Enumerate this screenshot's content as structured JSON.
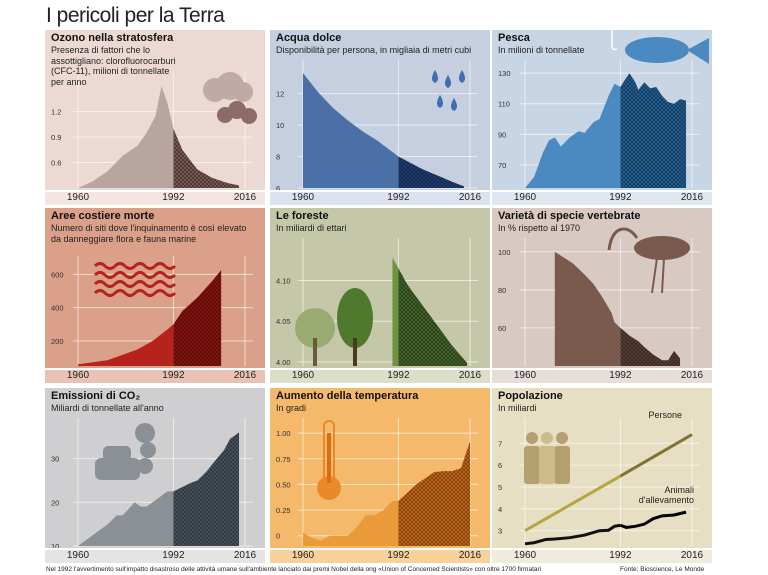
{
  "title": "I pericoli per la Terra",
  "footer": {
    "note": "Nel 1992 l'avvertimento sull'impatto disastroso delle attività umane sull'ambiente lanciato dai premi Nobel della ong «Union of Concerned Scientists» con oltre 1700 firmatari",
    "source": "Fonte: Bioscience, Le Monde"
  },
  "chart_data": [
    {
      "id": "ozono",
      "type": "area",
      "title": "Ozono nella stratosfera",
      "subtitle": "Presenza di fattori che lo assottigliano: clorofluorocarburi (CFC-11), milioni di tonnellate per anno",
      "x": [
        1960,
        1965,
        1970,
        1975,
        1980,
        1983,
        1986,
        1988,
        1990,
        1992,
        1995,
        2000,
        2005,
        2010,
        2014
      ],
      "y": [
        0.3,
        0.38,
        0.5,
        0.68,
        0.8,
        0.95,
        1.15,
        1.5,
        1.3,
        1.0,
        0.75,
        0.52,
        0.42,
        0.36,
        0.33
      ],
      "ylim": [
        0.3,
        1.55
      ],
      "yticks": [
        0.6,
        0.9,
        1.2
      ],
      "ytick_labels": [
        "0.6",
        "0.9",
        "1.2"
      ],
      "xticks": [
        "1960",
        "1992",
        "2016"
      ],
      "colors": {
        "bg": "#ecd9d3",
        "strip": "#f3e6e2",
        "fill": "#b9a5a0",
        "hatch": "#7a5a55"
      },
      "icon": "smoke-clouds-icon"
    },
    {
      "id": "acqua",
      "type": "area",
      "title": "Acqua dolce",
      "subtitle": "Disponibilità per persona, in migliaia di metri cubi",
      "x": [
        1960,
        1965,
        1970,
        1975,
        1980,
        1985,
        1992,
        1995,
        2000,
        2005,
        2010,
        2014
      ],
      "y": [
        13.3,
        12.1,
        11.1,
        10.3,
        9.6,
        9.0,
        8.0,
        7.7,
        7.2,
        6.8,
        6.4,
        6.1
      ],
      "ylim": [
        6,
        13.5
      ],
      "yticks": [
        6,
        8,
        10,
        12
      ],
      "ytick_labels": [
        "6",
        "8",
        "10",
        "12"
      ],
      "xticks": [
        "1960",
        "1992",
        "2016"
      ],
      "colors": {
        "bg": "#c6cfe0",
        "strip": "#dde3ee",
        "fill": "#4b70a6",
        "hatch": "#1f3f73"
      },
      "icon": "water-drops-icon"
    },
    {
      "id": "pesca",
      "type": "area",
      "title": "Pesca",
      "subtitle": "In milioni di tonnellate",
      "x": [
        1960,
        1963,
        1966,
        1968,
        1970,
        1972,
        1975,
        1978,
        1980,
        1983,
        1985,
        1988,
        1990,
        1992,
        1994,
        1995,
        1997,
        1998,
        2000,
        2002,
        2004,
        2006,
        2008,
        2010,
        2012,
        2014
      ],
      "y": [
        55,
        62,
        78,
        86,
        88,
        82,
        88,
        92,
        91,
        98,
        100,
        115,
        123,
        121,
        127,
        130,
        124,
        119,
        124,
        120,
        121,
        115,
        111,
        110,
        113,
        112
      ],
      "ylim": [
        55,
        132
      ],
      "yticks": [
        70,
        90,
        110,
        130
      ],
      "ytick_labels": [
        "70",
        "90",
        "110",
        "130"
      ],
      "xticks": [
        "1960",
        "1992",
        "2016"
      ],
      "colors": {
        "bg": "#c8d5e4",
        "strip": "#dfe7f0",
        "fill": "#4a8ac0",
        "hatch": "#235f92"
      },
      "icon": "fish-on-hook-icon"
    },
    {
      "id": "aree",
      "type": "area",
      "title": "Aree costiere morte",
      "subtitle": "Numero di siti dove l'inquinamento è così elevato da danneggiare flora e fauna marine",
      "x": [
        1960,
        1970,
        1980,
        1985,
        1990,
        1992,
        1995,
        2000,
        2005,
        2008
      ],
      "y": [
        60,
        85,
        150,
        200,
        270,
        300,
        380,
        460,
        560,
        625
      ],
      "ylim": [
        50,
        650
      ],
      "yticks": [
        200,
        400,
        600
      ],
      "ytick_labels": [
        "200",
        "400",
        "600"
      ],
      "xticks": [
        "1960",
        "1992",
        "2016"
      ],
      "colors": {
        "bg": "#dba08a",
        "strip": "#e9c2b3",
        "fill": "#b5231c",
        "hatch": "#8a1410"
      },
      "icon": "waves-icon"
    },
    {
      "id": "foreste",
      "type": "area",
      "title": "Le foreste",
      "subtitle": "In miliardi di ettari",
      "x": [
        1990,
        1992,
        1995,
        2000,
        2005,
        2010,
        2015
      ],
      "y": [
        4.128,
        4.115,
        4.095,
        4.07,
        4.045,
        4.02,
        3.999
      ],
      "ylim": [
        3.995,
        4.14
      ],
      "yticks": [
        4.0,
        4.05,
        4.1
      ],
      "ytick_labels": [
        "4.00",
        "4.05",
        "4.10"
      ],
      "xticks": [
        "1960",
        "1992",
        "2016"
      ],
      "colors": {
        "bg": "#c5c8a8",
        "strip": "#dcdec8",
        "fill": "#6f9440",
        "hatch": "#44652a"
      },
      "icon": "trees-icon"
    },
    {
      "id": "vertebrate",
      "type": "area",
      "title": "Varietà di specie vertebrate",
      "subtitle": "In % rispetto al 1970",
      "x": [
        1970,
        1973,
        1976,
        1980,
        1983,
        1986,
        1989,
        1990,
        1992,
        1995,
        1998,
        2000,
        2003,
        2006,
        2008,
        2010,
        2012
      ],
      "y": [
        100,
        97,
        94,
        88,
        83,
        76,
        68,
        63,
        60,
        56,
        53,
        50,
        46,
        43,
        43,
        48,
        44
      ],
      "ylim": [
        40,
        102
      ],
      "yticks": [
        60,
        80,
        100
      ],
      "ytick_labels": [
        "60",
        "80",
        "100"
      ],
      "xticks": [
        "1960",
        "1992",
        "2016"
      ],
      "colors": {
        "bg": "#d8c9c3",
        "strip": "#e7ddd9",
        "fill": "#7a5a4d",
        "hatch": "#5a3f36"
      },
      "icon": "ibis-bird-icon"
    },
    {
      "id": "co2",
      "type": "area",
      "title": "Emissioni di CO₂",
      "subtitle": "Miliardi di tonnellate all'anno",
      "x": [
        1960,
        1965,
        1970,
        1973,
        1975,
        1979,
        1981,
        1983,
        1986,
        1990,
        1992,
        1995,
        1998,
        2000,
        2003,
        2006,
        2009,
        2011,
        2014
      ],
      "y": [
        10,
        12.5,
        15,
        17,
        17,
        20,
        19,
        19,
        20.5,
        22.5,
        22.5,
        23.5,
        24.5,
        25,
        27,
        29.5,
        32,
        34.5,
        36
      ],
      "ylim": [
        10,
        37
      ],
      "yticks": [
        10,
        20,
        30
      ],
      "ytick_labels": [
        "10",
        "20",
        "30"
      ],
      "xticks": [
        "1960",
        "1992",
        "2016"
      ],
      "colors": {
        "bg": "#cfcfd1",
        "strip": "#e4e4e5",
        "fill": "#8a9096",
        "hatch": "#4a5560"
      },
      "icon": "car-exhaust-icon"
    },
    {
      "id": "temperatura",
      "type": "area",
      "title": "Aumento della temperatura",
      "subtitle": "In gradi",
      "x": [
        1960,
        1963,
        1966,
        1969,
        1972,
        1975,
        1978,
        1981,
        1984,
        1987,
        1990,
        1992,
        1995,
        1998,
        2001,
        2004,
        2007,
        2010,
        2013,
        2016
      ],
      "y": [
        0.03,
        -0.02,
        -0.05,
        0.0,
        0.0,
        0.0,
        0.08,
        0.2,
        0.2,
        0.25,
        0.34,
        0.34,
        0.42,
        0.5,
        0.56,
        0.62,
        0.63,
        0.63,
        0.66,
        0.92
      ],
      "ylim": [
        -0.1,
        1.05
      ],
      "yticks": [
        0,
        0.25,
        0.5,
        0.75,
        1.0
      ],
      "ytick_labels": [
        "0",
        "0.25",
        "0.50",
        "0.75",
        "1.00"
      ],
      "xticks": [
        "1960",
        "1992",
        "2016"
      ],
      "colors": {
        "bg": "#f4b96a",
        "strip": "#f8d19a",
        "fill": "#eb9a3a",
        "hatch": "#c7681a"
      },
      "icon": "thermometer-icon"
    },
    {
      "id": "popolazione",
      "type": "line",
      "title": "Popolazione",
      "subtitle": "In miliardi",
      "series": [
        {
          "name": "Persone",
          "x": [
            1960,
            1992,
            2016
          ],
          "y": [
            3.0,
            5.5,
            7.4
          ],
          "color": "#b5a642",
          "color_after": "#7f7430"
        },
        {
          "name": "Animali d'allevamento",
          "x": [
            1960,
            1963,
            1967,
            1970,
            1975,
            1980,
            1985,
            1988,
            1990,
            1992,
            1994,
            1997,
            2000,
            2003,
            2006,
            2010,
            2014
          ],
          "y": [
            2.4,
            2.45,
            2.6,
            2.62,
            2.68,
            2.8,
            3.0,
            3.02,
            3.2,
            3.25,
            3.15,
            3.2,
            3.3,
            3.55,
            3.68,
            3.72,
            3.85
          ],
          "color": "#111111",
          "color_after": "#000000"
        }
      ],
      "ylim": [
        2.3,
        7.7
      ],
      "yticks": [
        3,
        4,
        5,
        6,
        7
      ],
      "ytick_labels": [
        "3",
        "4",
        "5",
        "6",
        "7"
      ],
      "xticks": [
        "1960",
        "1992",
        "2016"
      ],
      "colors": {
        "bg": "#e6dfc3",
        "strip": "#efeadb"
      },
      "icon": "people-icon"
    }
  ]
}
